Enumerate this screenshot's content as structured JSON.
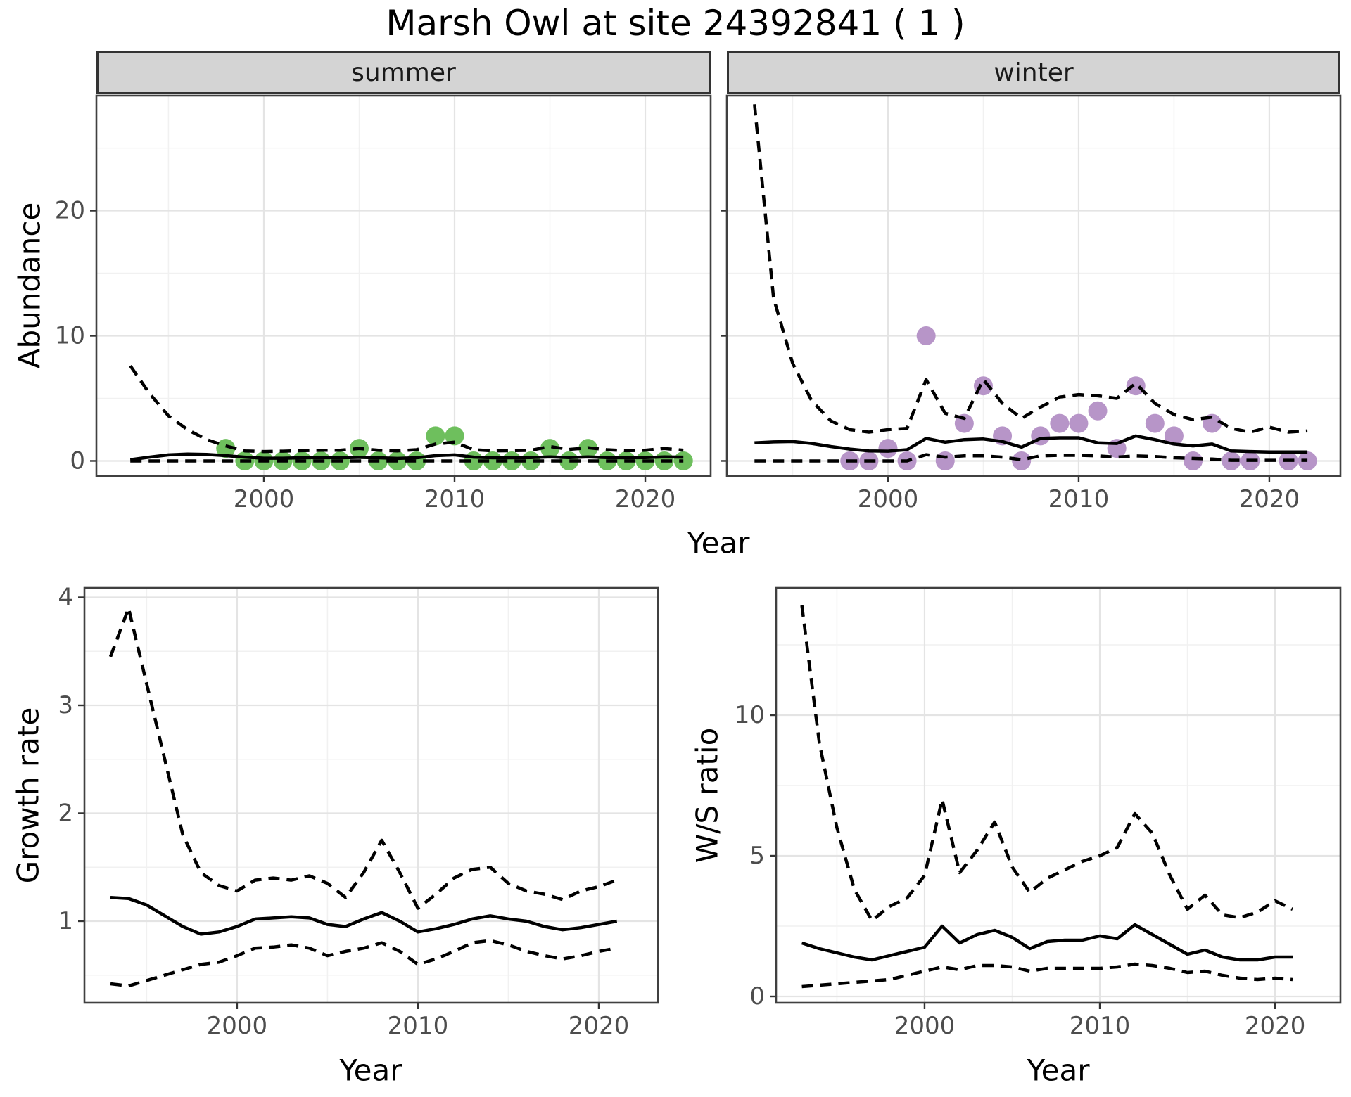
{
  "title": "Marsh Owl at site 24392841 ( 1 )",
  "facets": [
    {
      "label": "summer"
    },
    {
      "label": "winter"
    }
  ],
  "axes": {
    "abundance_label": "Abundance",
    "year_top": "Year",
    "growth_label": "Growth rate",
    "year_growth": "Year",
    "ws_label": "W/S ratio",
    "year_ws": "Year"
  },
  "colors": {
    "summer_point": "#6ebf5d",
    "winter_point": "#b795c8",
    "line": "#000000",
    "grid_major": "#e4e4e4",
    "grid_minor": "#f1f1f1",
    "tick_text": "#4d4d4d",
    "panel_border": "#404040",
    "strip_bg": "#d4d4d4"
  },
  "chart_data": [
    {
      "id": "abundance-summer",
      "type": "line+scatter",
      "facet": "summer",
      "xlabel": "Year",
      "ylabel": "Abundance",
      "xlim": [
        1991.22,
        2023.43
      ],
      "ylim": [
        -1.21,
        29.19
      ],
      "x_ticks": [
        2000,
        2010,
        2020
      ],
      "y_ticks": [
        0,
        10,
        20
      ],
      "x_minor": [
        1995,
        2005,
        2015
      ],
      "y_minor": [
        5,
        15,
        25
      ],
      "x": [
        1993,
        1994,
        1995,
        1996,
        1997,
        1998,
        1999,
        2000,
        2001,
        2002,
        2003,
        2004,
        2005,
        2006,
        2007,
        2008,
        2009,
        2010,
        2011,
        2012,
        2013,
        2014,
        2015,
        2016,
        2017,
        2018,
        2019,
        2020,
        2021,
        2022
      ],
      "series": [
        {
          "name": "lower_ci",
          "style": "dashed",
          "values": [
            0,
            0,
            0,
            0,
            0,
            0,
            0,
            0,
            0,
            0,
            0,
            0,
            0,
            0,
            0,
            0,
            0,
            0,
            0,
            0,
            0,
            0,
            0,
            0,
            0,
            0,
            0,
            0,
            0,
            0
          ]
        },
        {
          "name": "upper_ci",
          "style": "dashed",
          "values": [
            7.6,
            5.4,
            3.6,
            2.5,
            1.7,
            1.2,
            0.8,
            0.75,
            0.78,
            0.82,
            0.85,
            0.85,
            1.0,
            0.85,
            0.8,
            0.9,
            1.35,
            1.5,
            0.9,
            0.8,
            0.82,
            0.85,
            1.15,
            0.92,
            1.05,
            0.9,
            0.82,
            0.85,
            1.0,
            0.85
          ]
        },
        {
          "name": "fit",
          "style": "solid",
          "values": [
            0.1,
            0.3,
            0.48,
            0.55,
            0.52,
            0.42,
            0.3,
            0.22,
            0.22,
            0.25,
            0.27,
            0.25,
            0.28,
            0.25,
            0.2,
            0.25,
            0.42,
            0.48,
            0.3,
            0.25,
            0.25,
            0.27,
            0.32,
            0.27,
            0.32,
            0.27,
            0.25,
            0.27,
            0.32,
            0.3
          ]
        }
      ],
      "points": {
        "name": "observed_counts",
        "color_key": "summer_point",
        "x": [
          1998,
          1999,
          2000,
          2001,
          2002,
          2003,
          2004,
          2005,
          2006,
          2007,
          2008,
          2009,
          2010,
          2011,
          2012,
          2013,
          2014,
          2015,
          2016,
          2017,
          2018,
          2019,
          2020,
          2021,
          2022
        ],
        "y": [
          1,
          0,
          0,
          0,
          0,
          0,
          0,
          1,
          0,
          0,
          0,
          2,
          2,
          0,
          0,
          0,
          0,
          1,
          0,
          1,
          0,
          0,
          0,
          0,
          0
        ]
      }
    },
    {
      "id": "abundance-winter",
      "type": "line+scatter",
      "facet": "winter",
      "xlabel": "Year",
      "ylabel": "Abundance",
      "xlim": [
        1991.55,
        2023.73
      ],
      "ylim": [
        -1.21,
        29.19
      ],
      "x_ticks": [
        2000,
        2010,
        2020
      ],
      "y_ticks": [
        0,
        10,
        20
      ],
      "x_minor": [
        1995,
        2005,
        2015
      ],
      "y_minor": [
        5,
        15,
        25
      ],
      "x": [
        1993,
        1994,
        1995,
        1996,
        1997,
        1998,
        1999,
        2000,
        2001,
        2002,
        2003,
        2004,
        2005,
        2006,
        2007,
        2008,
        2009,
        2010,
        2011,
        2012,
        2013,
        2014,
        2015,
        2016,
        2017,
        2018,
        2019,
        2020,
        2021,
        2022
      ],
      "series": [
        {
          "name": "lower_ci",
          "style": "dashed",
          "values": [
            0,
            0,
            0,
            0,
            0,
            0,
            0,
            0,
            0,
            0.5,
            0.3,
            0.4,
            0.4,
            0.3,
            0.1,
            0.4,
            0.45,
            0.45,
            0.4,
            0.3,
            0.4,
            0.35,
            0.25,
            0.2,
            0.15,
            0.05,
            0.05,
            0.05,
            0.05,
            0.05
          ]
        },
        {
          "name": "upper_ci",
          "style": "dashed",
          "values": [
            28.5,
            13.0,
            7.8,
            4.8,
            3.2,
            2.5,
            2.3,
            2.5,
            2.6,
            6.5,
            3.8,
            3.4,
            6.5,
            4.6,
            3.4,
            4.3,
            5.1,
            5.3,
            5.2,
            5.0,
            6.2,
            4.6,
            3.7,
            3.3,
            3.5,
            2.6,
            2.3,
            2.7,
            2.3,
            2.4
          ]
        },
        {
          "name": "fit",
          "style": "solid",
          "values": [
            1.45,
            1.52,
            1.55,
            1.4,
            1.15,
            0.95,
            0.8,
            0.78,
            0.9,
            1.8,
            1.5,
            1.7,
            1.75,
            1.55,
            1.1,
            1.8,
            1.85,
            1.85,
            1.45,
            1.4,
            2.0,
            1.7,
            1.35,
            1.2,
            1.35,
            0.8,
            0.75,
            0.72,
            0.72,
            0.72
          ]
        }
      ],
      "points": {
        "name": "observed_counts",
        "color_key": "winter_point",
        "x": [
          1998,
          1999,
          2000,
          2001,
          2002,
          2003,
          2004,
          2005,
          2006,
          2007,
          2008,
          2009,
          2010,
          2011,
          2012,
          2013,
          2014,
          2015,
          2016,
          2017,
          2018,
          2019,
          2021,
          2022
        ],
        "y": [
          0,
          0,
          1,
          0,
          10,
          0,
          3,
          6,
          2,
          0,
          2,
          3,
          3,
          4,
          1,
          6,
          3,
          2,
          0,
          3,
          0,
          0,
          0,
          0
        ]
      }
    },
    {
      "id": "growth-rate",
      "type": "line",
      "xlabel": "Year",
      "ylabel": "Growth rate",
      "xlim": [
        1991.56,
        2023.27
      ],
      "ylim": [
        0.244,
        4.088
      ],
      "x_ticks": [
        2000,
        2010,
        2020
      ],
      "y_ticks": [
        1,
        2,
        3,
        4
      ],
      "x_minor": [
        1995,
        2005,
        2015
      ],
      "y_minor": [
        0.5,
        1.5,
        2.5,
        3.5
      ],
      "x": [
        1993,
        1994,
        1995,
        1996,
        1997,
        1998,
        1999,
        2000,
        2001,
        2002,
        2003,
        2004,
        2005,
        2006,
        2007,
        2008,
        2009,
        2010,
        2011,
        2012,
        2013,
        2014,
        2015,
        2016,
        2017,
        2018,
        2019,
        2020,
        2021
      ],
      "series": [
        {
          "name": "lower_ci",
          "style": "dashed",
          "values": [
            0.42,
            0.4,
            0.45,
            0.5,
            0.55,
            0.6,
            0.62,
            0.68,
            0.75,
            0.76,
            0.78,
            0.75,
            0.68,
            0.72,
            0.75,
            0.8,
            0.72,
            0.6,
            0.65,
            0.72,
            0.8,
            0.82,
            0.78,
            0.72,
            0.68,
            0.65,
            0.68,
            0.72,
            0.75
          ]
        },
        {
          "name": "upper_ci",
          "style": "dashed",
          "values": [
            3.45,
            3.9,
            3.2,
            2.5,
            1.8,
            1.45,
            1.33,
            1.28,
            1.38,
            1.4,
            1.38,
            1.42,
            1.35,
            1.22,
            1.45,
            1.75,
            1.45,
            1.12,
            1.25,
            1.4,
            1.48,
            1.5,
            1.35,
            1.28,
            1.25,
            1.2,
            1.28,
            1.32,
            1.38
          ]
        },
        {
          "name": "fit",
          "style": "solid",
          "values": [
            1.22,
            1.21,
            1.15,
            1.05,
            0.95,
            0.88,
            0.9,
            0.95,
            1.02,
            1.03,
            1.04,
            1.03,
            0.97,
            0.95,
            1.02,
            1.08,
            1.0,
            0.9,
            0.93,
            0.97,
            1.02,
            1.05,
            1.02,
            1.0,
            0.95,
            0.92,
            0.94,
            0.97,
            1.0
          ]
        }
      ]
    },
    {
      "id": "ws-ratio",
      "type": "line",
      "xlabel": "Year",
      "ylabel": "W/S ratio",
      "xlim": [
        1991.53,
        2023.73
      ],
      "ylim": [
        -0.225,
        14.525
      ],
      "x_ticks": [
        2000,
        2010,
        2020
      ],
      "y_ticks": [
        0,
        5,
        10
      ],
      "x_minor": [
        1995,
        2005,
        2015
      ],
      "y_minor": [
        2.5,
        7.5,
        12.5
      ],
      "x": [
        1993,
        1994,
        1995,
        1996,
        1997,
        1998,
        1999,
        2000,
        2001,
        2002,
        2003,
        2004,
        2005,
        2006,
        2007,
        2008,
        2009,
        2010,
        2011,
        2012,
        2013,
        2014,
        2015,
        2016,
        2017,
        2018,
        2019,
        2020,
        2021
      ],
      "series": [
        {
          "name": "lower_ci",
          "style": "dashed",
          "values": [
            0.35,
            0.4,
            0.45,
            0.5,
            0.55,
            0.6,
            0.75,
            0.9,
            1.05,
            0.95,
            1.1,
            1.1,
            1.05,
            0.9,
            1.0,
            1.0,
            1.0,
            1.0,
            1.05,
            1.15,
            1.1,
            1.0,
            0.85,
            0.9,
            0.75,
            0.65,
            0.6,
            0.65,
            0.6
          ]
        },
        {
          "name": "upper_ci",
          "style": "dashed",
          "values": [
            13.9,
            9.0,
            6.0,
            3.8,
            2.7,
            3.2,
            3.5,
            4.3,
            7.0,
            4.4,
            5.2,
            6.2,
            4.6,
            3.7,
            4.2,
            4.5,
            4.8,
            5.0,
            5.3,
            6.5,
            5.8,
            4.3,
            3.1,
            3.6,
            2.9,
            2.8,
            3.0,
            3.4,
            3.1
          ]
        },
        {
          "name": "fit",
          "style": "solid",
          "values": [
            1.9,
            1.7,
            1.55,
            1.4,
            1.3,
            1.45,
            1.6,
            1.75,
            2.5,
            1.9,
            2.2,
            2.35,
            2.1,
            1.7,
            1.95,
            2.0,
            2.0,
            2.15,
            2.05,
            2.55,
            2.2,
            1.85,
            1.5,
            1.65,
            1.4,
            1.3,
            1.3,
            1.4,
            1.4
          ]
        }
      ]
    }
  ]
}
